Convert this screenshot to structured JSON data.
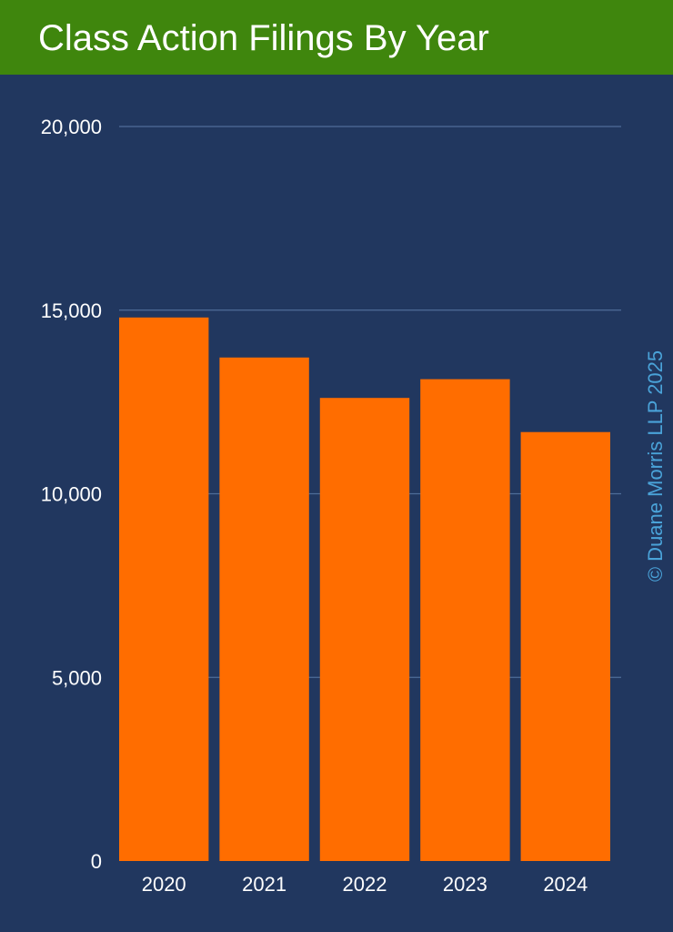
{
  "chart_data": {
    "type": "bar",
    "title": "Class Action Filings By Year",
    "categories": [
      "2020",
      "2021",
      "2022",
      "2023",
      "2024"
    ],
    "values": [
      14800,
      13710,
      12610,
      13120,
      11680
    ],
    "y_ticks": [
      0,
      5000,
      10000,
      15000,
      20000
    ],
    "y_tick_labels": [
      "0",
      "5,000",
      "10,000",
      "15,000",
      "20,000"
    ],
    "ylim": [
      0,
      20000
    ],
    "xlabel": "",
    "ylabel": "",
    "grid": true,
    "legend": "none",
    "colors": {
      "bar": "#ff6d00",
      "header": "#3f860d",
      "background": "#21375f",
      "gridline": "#4f6d99",
      "copyright": "#4aa3d9"
    },
    "copyright": "© Duane Morris LLP 2025"
  }
}
